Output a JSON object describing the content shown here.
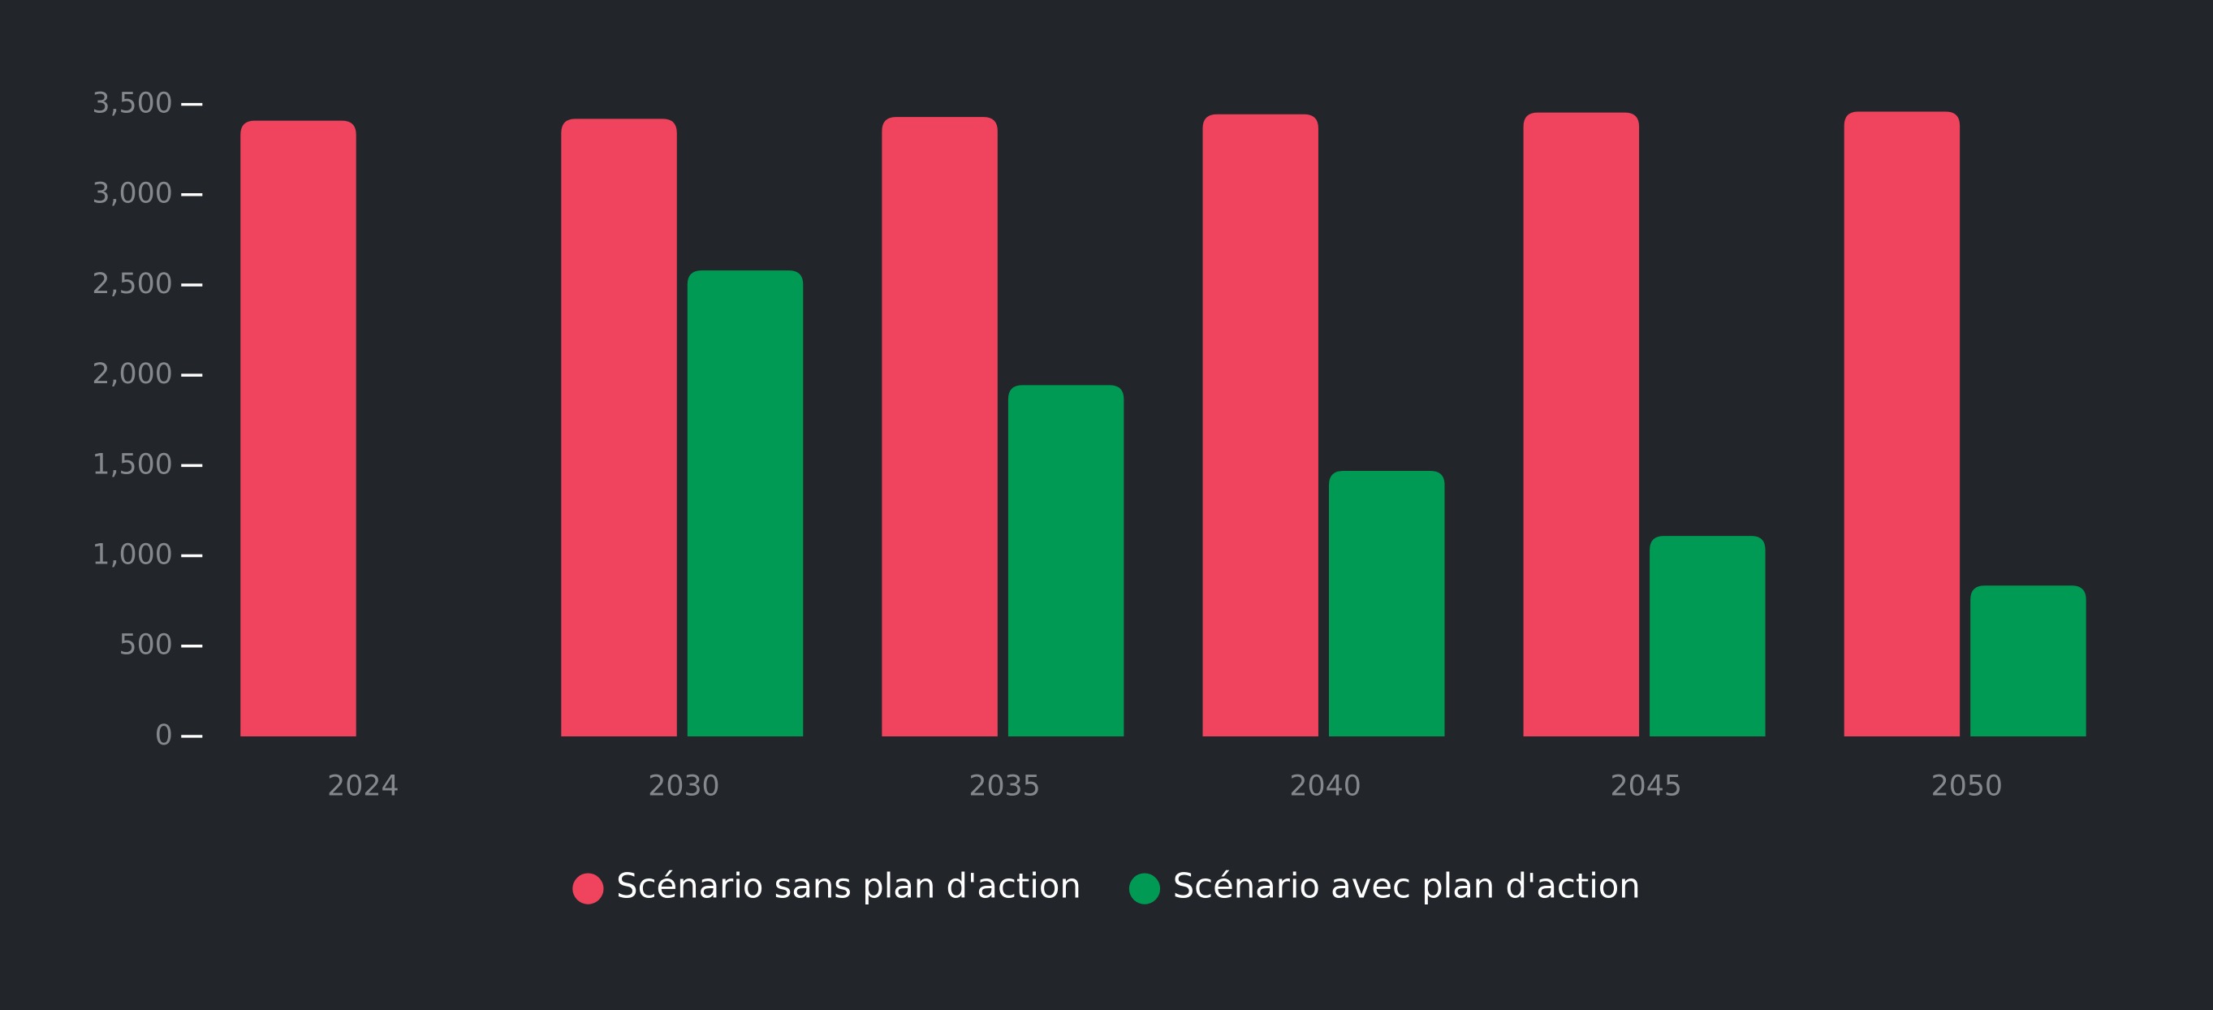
{
  "chart_data": {
    "type": "bar",
    "categories": [
      "2024",
      "2030",
      "2035",
      "2040",
      "2045",
      "2050"
    ],
    "series": [
      {
        "name": "Scénario sans plan d'action",
        "color": "#f0435e",
        "values": [
          3410,
          3420,
          3430,
          3445,
          3455,
          3460
        ]
      },
      {
        "name": "Scénario avec plan d'action",
        "color": "#009a54",
        "values": [
          null,
          2580,
          1945,
          1470,
          1110,
          835
        ]
      }
    ],
    "ylim": [
      0,
      3500
    ],
    "yticks": [
      0,
      {
        "value": 500,
        "label": "500"
      },
      {
        "value": 1000,
        "label": "1,000"
      },
      {
        "value": 1500,
        "label": "1,500"
      },
      {
        "value": 2000,
        "label": "2,000"
      },
      {
        "value": 2500,
        "label": "2,500"
      },
      {
        "value": 3000,
        "label": "3,000"
      },
      {
        "value": 3500,
        "label": "3,500"
      }
    ],
    "legend": "bottom"
  }
}
